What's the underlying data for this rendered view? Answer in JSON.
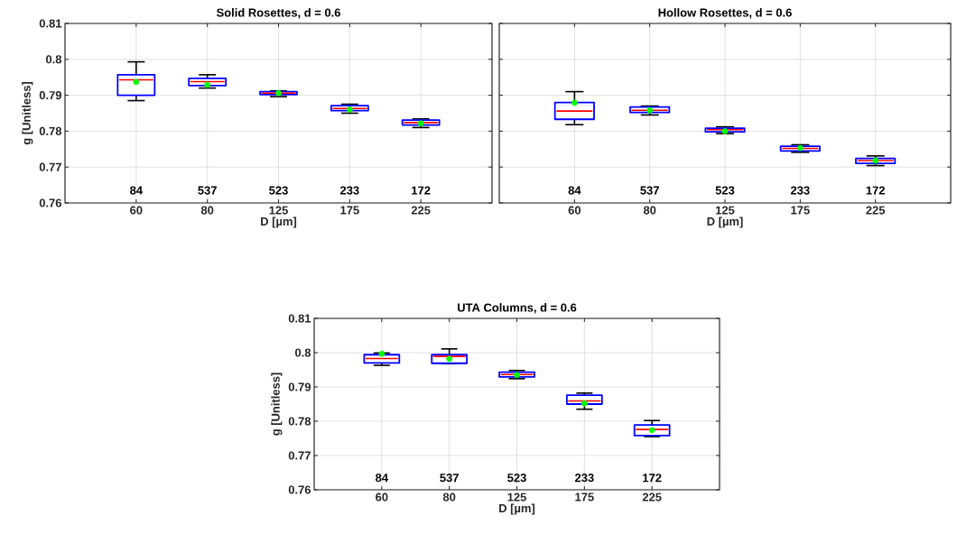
{
  "chart_data": [
    {
      "type": "box",
      "title": "Solid Rosettes, d = 0.6",
      "xlabel": "D [µm]",
      "ylabel": "g [Unitless]",
      "categories": [
        "60",
        "80",
        "125",
        "175",
        "225"
      ],
      "color": "#0000ff",
      "ylim": [
        0.76,
        0.81
      ],
      "yticks": [
        0.76,
        0.77,
        0.78,
        0.79,
        0.8,
        0.81
      ],
      "grid": true,
      "boxes": [
        {
          "low": 0.7885,
          "q1": 0.79,
          "median": 0.7943,
          "q3": 0.7957,
          "high": 0.7993,
          "mean": 0.7937
        },
        {
          "low": 0.792,
          "q1": 0.7927,
          "median": 0.7938,
          "q3": 0.7947,
          "high": 0.7957,
          "mean": 0.7929
        },
        {
          "low": 0.7896,
          "q1": 0.7902,
          "median": 0.7906,
          "q3": 0.791,
          "high": 0.7912,
          "mean": 0.7906
        },
        {
          "low": 0.785,
          "q1": 0.7857,
          "median": 0.7863,
          "q3": 0.7871,
          "high": 0.7875,
          "mean": 0.786
        },
        {
          "low": 0.781,
          "q1": 0.7817,
          "median": 0.7824,
          "q3": 0.7831,
          "high": 0.7834,
          "mean": 0.7822
        }
      ],
      "annotations": [
        "84",
        "537",
        "523",
        "233",
        "172"
      ]
    },
    {
      "type": "box",
      "title": "Hollow Rosettes, d = 0.6",
      "xlabel": "D [µm]",
      "categories": [
        "60",
        "80",
        "125",
        "175",
        "225"
      ],
      "color": "#0000ff",
      "ylim": [
        0.76,
        0.81
      ],
      "yticks": [
        0.76,
        0.77,
        0.78,
        0.79,
        0.8,
        0.81
      ],
      "grid": true,
      "tick_labels": "x",
      "boxes": [
        {
          "low": 0.7818,
          "q1": 0.7833,
          "median": 0.7856,
          "q3": 0.788,
          "high": 0.791,
          "mean": 0.7879
        },
        {
          "low": 0.7845,
          "q1": 0.7852,
          "median": 0.7858,
          "q3": 0.7867,
          "high": 0.787,
          "mean": 0.7858
        },
        {
          "low": 0.7793,
          "q1": 0.7798,
          "median": 0.7804,
          "q3": 0.7808,
          "high": 0.7812,
          "mean": 0.78
        },
        {
          "low": 0.7741,
          "q1": 0.7745,
          "median": 0.7752,
          "q3": 0.7758,
          "high": 0.7762,
          "mean": 0.7753
        },
        {
          "low": 0.7704,
          "q1": 0.771,
          "median": 0.7718,
          "q3": 0.7724,
          "high": 0.7731,
          "mean": 0.7718
        }
      ],
      "annotations": [
        "84",
        "537",
        "523",
        "233",
        "172"
      ]
    },
    {
      "type": "box",
      "title": "UTA Columns, d = 0.6",
      "xlabel": "D [µm]",
      "ylabel": "g [Unitless]",
      "categories": [
        "60",
        "80",
        "125",
        "175",
        "225"
      ],
      "color": "#0000ff",
      "ylim": [
        0.76,
        0.81
      ],
      "yticks": [
        0.76,
        0.77,
        0.78,
        0.79,
        0.8,
        0.81
      ],
      "grid": true,
      "boxes": [
        {
          "low": 0.7963,
          "q1": 0.797,
          "median": 0.7983,
          "q3": 0.7994,
          "high": 0.7999,
          "mean": 0.7997
        },
        {
          "low": 0.7968,
          "q1": 0.7969,
          "median": 0.7989,
          "q3": 0.7994,
          "high": 0.8011,
          "mean": 0.7982
        },
        {
          "low": 0.7924,
          "q1": 0.7929,
          "median": 0.7936,
          "q3": 0.7943,
          "high": 0.7948,
          "mean": 0.7935
        },
        {
          "low": 0.7835,
          "q1": 0.785,
          "median": 0.7859,
          "q3": 0.7876,
          "high": 0.7882,
          "mean": 0.7852
        },
        {
          "low": 0.7755,
          "q1": 0.7758,
          "median": 0.7776,
          "q3": 0.7789,
          "high": 0.7802,
          "mean": 0.7774
        }
      ],
      "annotations": [
        "84",
        "537",
        "523",
        "233",
        "172"
      ]
    }
  ]
}
